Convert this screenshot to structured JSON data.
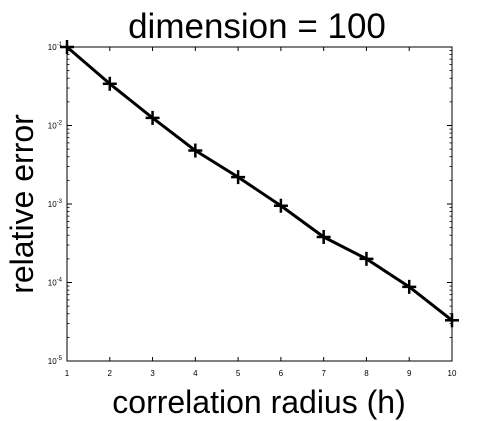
{
  "chart_data": {
    "type": "line",
    "title": "dimension = 100",
    "xlabel": "correlation radius (h)",
    "ylabel": "relative error",
    "x": [
      1,
      2,
      3,
      4,
      5,
      6,
      7,
      8,
      9,
      10
    ],
    "series": [
      {
        "values": [
          0.1,
          0.034,
          0.0125,
          0.0048,
          0.0022,
          0.00095,
          0.00038,
          0.0002,
          8.8e-05,
          3.3e-05
        ],
        "color": "#000000",
        "marker": "plus"
      }
    ],
    "xlim": [
      1,
      10
    ],
    "ylim": [
      1e-05,
      0.1
    ],
    "yscale": "log",
    "x_ticks": [
      "1",
      "2",
      "3",
      "4",
      "5",
      "6",
      "7",
      "8",
      "9",
      "10"
    ],
    "y_ticks": [
      {
        "base": "10",
        "exp": "-1"
      },
      {
        "base": "10",
        "exp": "-2"
      },
      {
        "base": "10",
        "exp": "-3"
      },
      {
        "base": "10",
        "exp": "-4"
      },
      {
        "base": "10",
        "exp": "-5"
      }
    ],
    "grid": false,
    "legend": "none"
  }
}
